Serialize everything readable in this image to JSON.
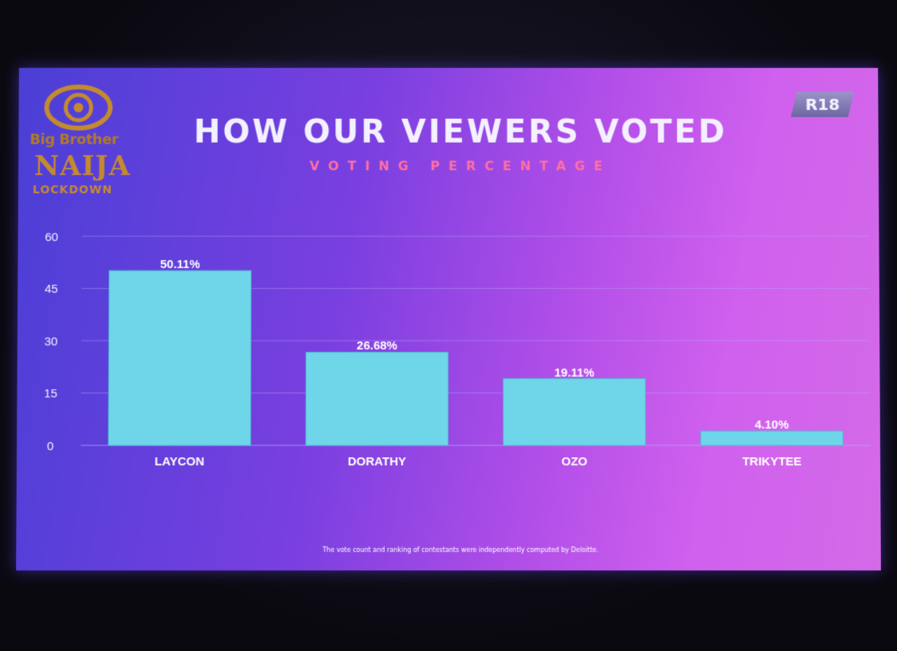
{
  "logo": {
    "line1": "Big Brother",
    "line2": "NAIJA",
    "line3": "LOCKDOWN"
  },
  "rating_badge": "R18",
  "title": "HOW OUR VIEWERS VOTED",
  "subtitle": "VOTING PERCENTAGE",
  "footnote": "The vote count and ranking of contestants were independently computed by Deloitte.",
  "colors": {
    "bar": "#6fd6ea",
    "bar_edge": "#4fb9cf",
    "axis_text": "#f3f1ff",
    "label_text": "#ffffff",
    "gridline": "#b8a8ff",
    "logo_gold": "#c48a30"
  },
  "chart_data": {
    "type": "bar",
    "title": "HOW OUR VIEWERS VOTED",
    "subtitle": "VOTING PERCENTAGE",
    "categories": [
      "LAYCON",
      "DORATHY",
      "OZO",
      "TRIKYTEE"
    ],
    "values": [
      50.11,
      26.68,
      19.11,
      4.1
    ],
    "data_labels": [
      "50.11%",
      "26.68%",
      "19.11%",
      "4.10%"
    ],
    "xlabel": "",
    "ylabel": "",
    "ylim": [
      0,
      60
    ],
    "yticks": [
      0,
      15,
      30,
      45,
      60
    ],
    "grid": true,
    "legend": "none"
  }
}
